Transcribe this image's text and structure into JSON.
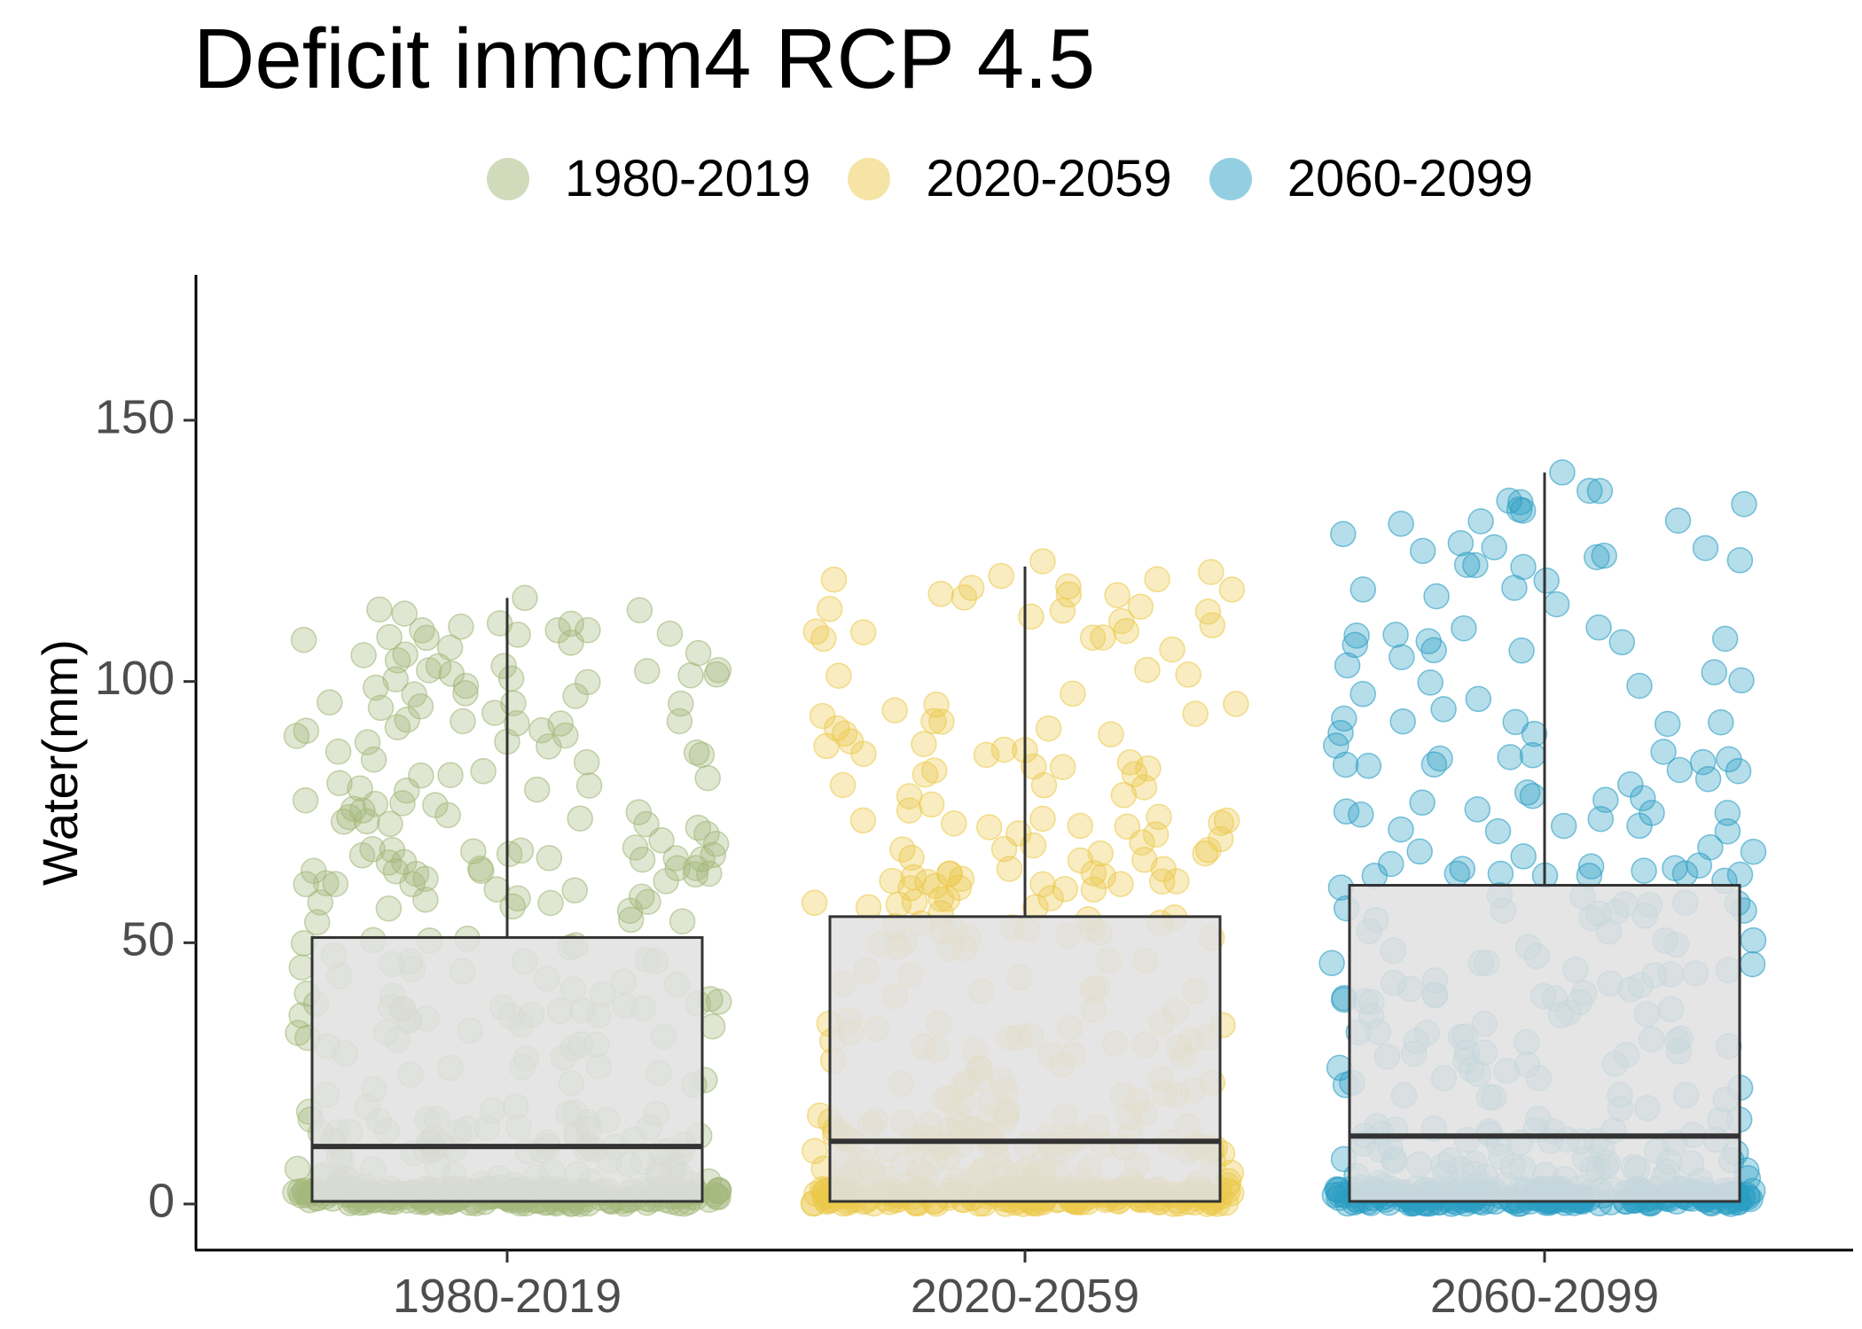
{
  "chart_data": {
    "type": "boxplot_jitter",
    "title": "Deficit inmcm4 RCP 4.5",
    "xlabel": "",
    "ylabel": "Water(mm)",
    "ylim": [
      -8,
      178
    ],
    "yticks": [
      0,
      50,
      100,
      150
    ],
    "categories": [
      "1980-2019",
      "2020-2059",
      "2060-2099"
    ],
    "legend": {
      "position": "top",
      "entries": [
        "1980-2019",
        "2020-2059",
        "2060-2099"
      ]
    },
    "grid": false,
    "colors": [
      "#a4b77a",
      "#ecc94b",
      "#2a9fc4"
    ],
    "box_fill": "#e0e0e0",
    "series": [
      {
        "name": "1980-2019",
        "whisker_low": 0,
        "q1": 0.5,
        "median": 11,
        "q3": 51,
        "whisker_high": 116,
        "points_max": 116
      },
      {
        "name": "2020-2059",
        "whisker_low": 0,
        "q1": 0.5,
        "median": 12,
        "q3": 55,
        "whisker_high": 122,
        "points_max": 123
      },
      {
        "name": "2060-2099",
        "whisker_low": 0,
        "q1": 0.5,
        "median": 13,
        "q3": 61,
        "whisker_high": 140,
        "points_max": 140
      }
    ]
  }
}
